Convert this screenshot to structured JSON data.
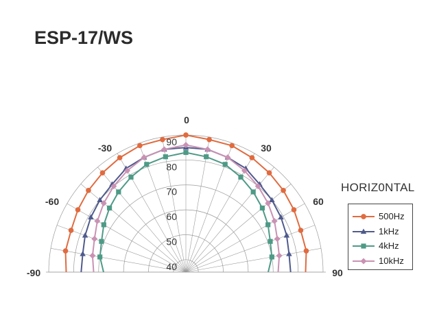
{
  "title": "ESP-17/WS",
  "chart_data": {
    "type": "polar",
    "title": "ESP-17/WS",
    "subtitle": "HORIZ0NTAL",
    "angle_range_deg": [
      -90,
      90
    ],
    "angle_labels": [
      {
        "angle": 0,
        "text": "0"
      },
      {
        "angle": -30,
        "text": "-30"
      },
      {
        "angle": 30,
        "text": "30"
      },
      {
        "angle": -60,
        "text": "-60"
      },
      {
        "angle": 60,
        "text": "60"
      },
      {
        "angle": -90,
        "text": "-90"
      },
      {
        "angle": 90,
        "text": "90"
      }
    ],
    "radial_range": [
      35,
      90
    ],
    "radial_ticks": [
      40,
      50,
      60,
      70,
      80,
      90
    ],
    "grid": true,
    "legend_position": "right",
    "angles": [
      -90,
      -80,
      -70,
      -60,
      -50,
      -40,
      -30,
      -20,
      -10,
      0,
      10,
      20,
      30,
      40,
      50,
      60,
      70,
      80,
      90
    ],
    "series": [
      {
        "name": "500Hz",
        "color": "#e06b3f",
        "marker": "circle",
        "values": [
          83,
          84,
          84,
          85,
          86,
          87,
          88,
          89,
          89,
          90,
          89,
          89,
          88,
          87,
          86,
          85,
          84,
          84,
          83
        ]
      },
      {
        "name": "1kHz",
        "color": "#4f5a8c",
        "marker": "triangle",
        "values": [
          77,
          77,
          78,
          79,
          80,
          81,
          83,
          84,
          85,
          85,
          85,
          84,
          83,
          81,
          80,
          79,
          78,
          77,
          77
        ]
      },
      {
        "name": "4kHz",
        "color": "#4e9a86",
        "marker": "square",
        "values": [
          68,
          70,
          71,
          73,
          75,
          77,
          79,
          81,
          82,
          83,
          82,
          81,
          79,
          77,
          75,
          73,
          71,
          70,
          68
        ]
      },
      {
        "name": "10kHz",
        "color": "#c992b3",
        "marker": "diamond",
        "values": [
          72,
          73,
          74,
          76,
          78,
          80,
          82,
          84,
          85,
          86,
          85,
          84,
          82,
          80,
          78,
          76,
          74,
          73,
          72
        ]
      }
    ]
  }
}
